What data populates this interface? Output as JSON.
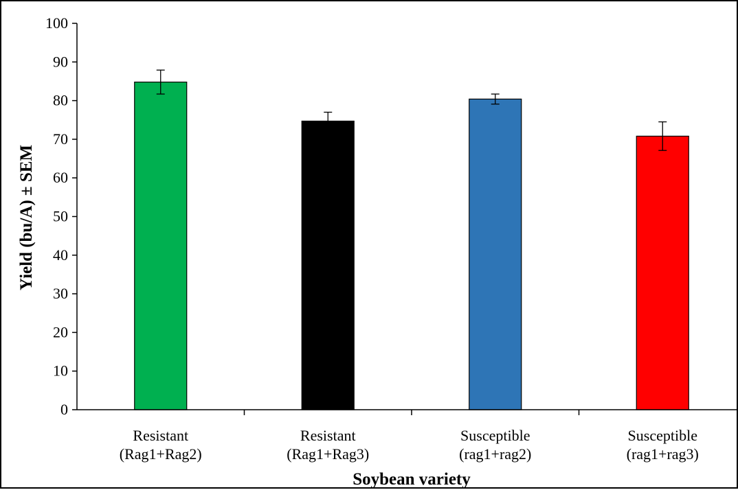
{
  "chart_data": {
    "type": "bar",
    "title": "",
    "xlabel": "Soybean variety",
    "ylabel": "Yield (bu/A) ± SEM",
    "ylim": [
      0,
      100
    ],
    "yticks": [
      0,
      10,
      20,
      30,
      40,
      50,
      60,
      70,
      80,
      90,
      100
    ],
    "categories": [
      [
        "Resistant",
        "(Rag1+Rag2)"
      ],
      [
        "Resistant",
        "(Rag1+Rag3)"
      ],
      [
        "Susceptible",
        "(rag1+rag2)"
      ],
      [
        "Susceptible",
        "(rag1+rag3)"
      ]
    ],
    "values": [
      84.8,
      74.7,
      80.4,
      70.8
    ],
    "errors": [
      3.1,
      2.3,
      1.3,
      3.7
    ],
    "colors": [
      "#00b050",
      "#000000",
      "#2e75b6",
      "#ff0000"
    ],
    "grid": false,
    "legend": "none"
  }
}
